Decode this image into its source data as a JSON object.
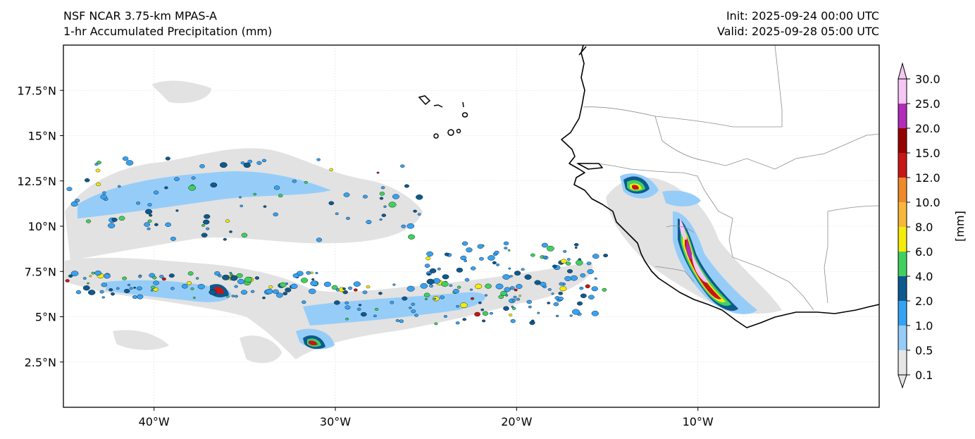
{
  "header": {
    "model": "NSF NCAR 3.75-km MPAS-A",
    "field": "1-hr Accumulated Precipitation (mm)",
    "init": "Init: 2025-09-24 00:00 UTC",
    "valid": "Valid: 2025-09-28 05:00 UTC"
  },
  "map": {
    "lon_range": [
      -45,
      0
    ],
    "lat_range": [
      0,
      20
    ],
    "lon_ticks": [
      {
        "value": -40,
        "label": "40°W"
      },
      {
        "value": -30,
        "label": "30°W"
      },
      {
        "value": -20,
        "label": "20°W"
      },
      {
        "value": -10,
        "label": "10°W"
      }
    ],
    "lat_ticks": [
      {
        "value": 2.5,
        "label": "2.5°N"
      },
      {
        "value": 5,
        "label": "5°N"
      },
      {
        "value": 7.5,
        "label": "7.5°N"
      },
      {
        "value": 10,
        "label": "10°N"
      },
      {
        "value": 12.5,
        "label": "12.5°N"
      },
      {
        "value": 15,
        "label": "15°N"
      },
      {
        "value": 17.5,
        "label": "17.5°N"
      }
    ],
    "colors": {
      "land_coast": "#000000",
      "border": "#8c8c8c",
      "light_rain": "#e0e0e0",
      "blue": "#35a3f5",
      "dark_blue": "#0d5a8f"
    }
  },
  "colorbar": {
    "label": "[mm]",
    "levels": [
      "0.1",
      "0.5",
      "1.0",
      "2.0",
      "4.0",
      "6.0",
      "8.0",
      "10.0",
      "12.0",
      "15.0",
      "20.0",
      "25.0",
      "30.0"
    ],
    "colors": [
      "#e6e6e6",
      "#96cdf8",
      "#35a3f5",
      "#0d5a8f",
      "#3fd160",
      "#f5ec0a",
      "#f7b73a",
      "#ee8a29",
      "#c71616",
      "#950000",
      "#b12db8",
      "#f6c7f4"
    ]
  }
}
